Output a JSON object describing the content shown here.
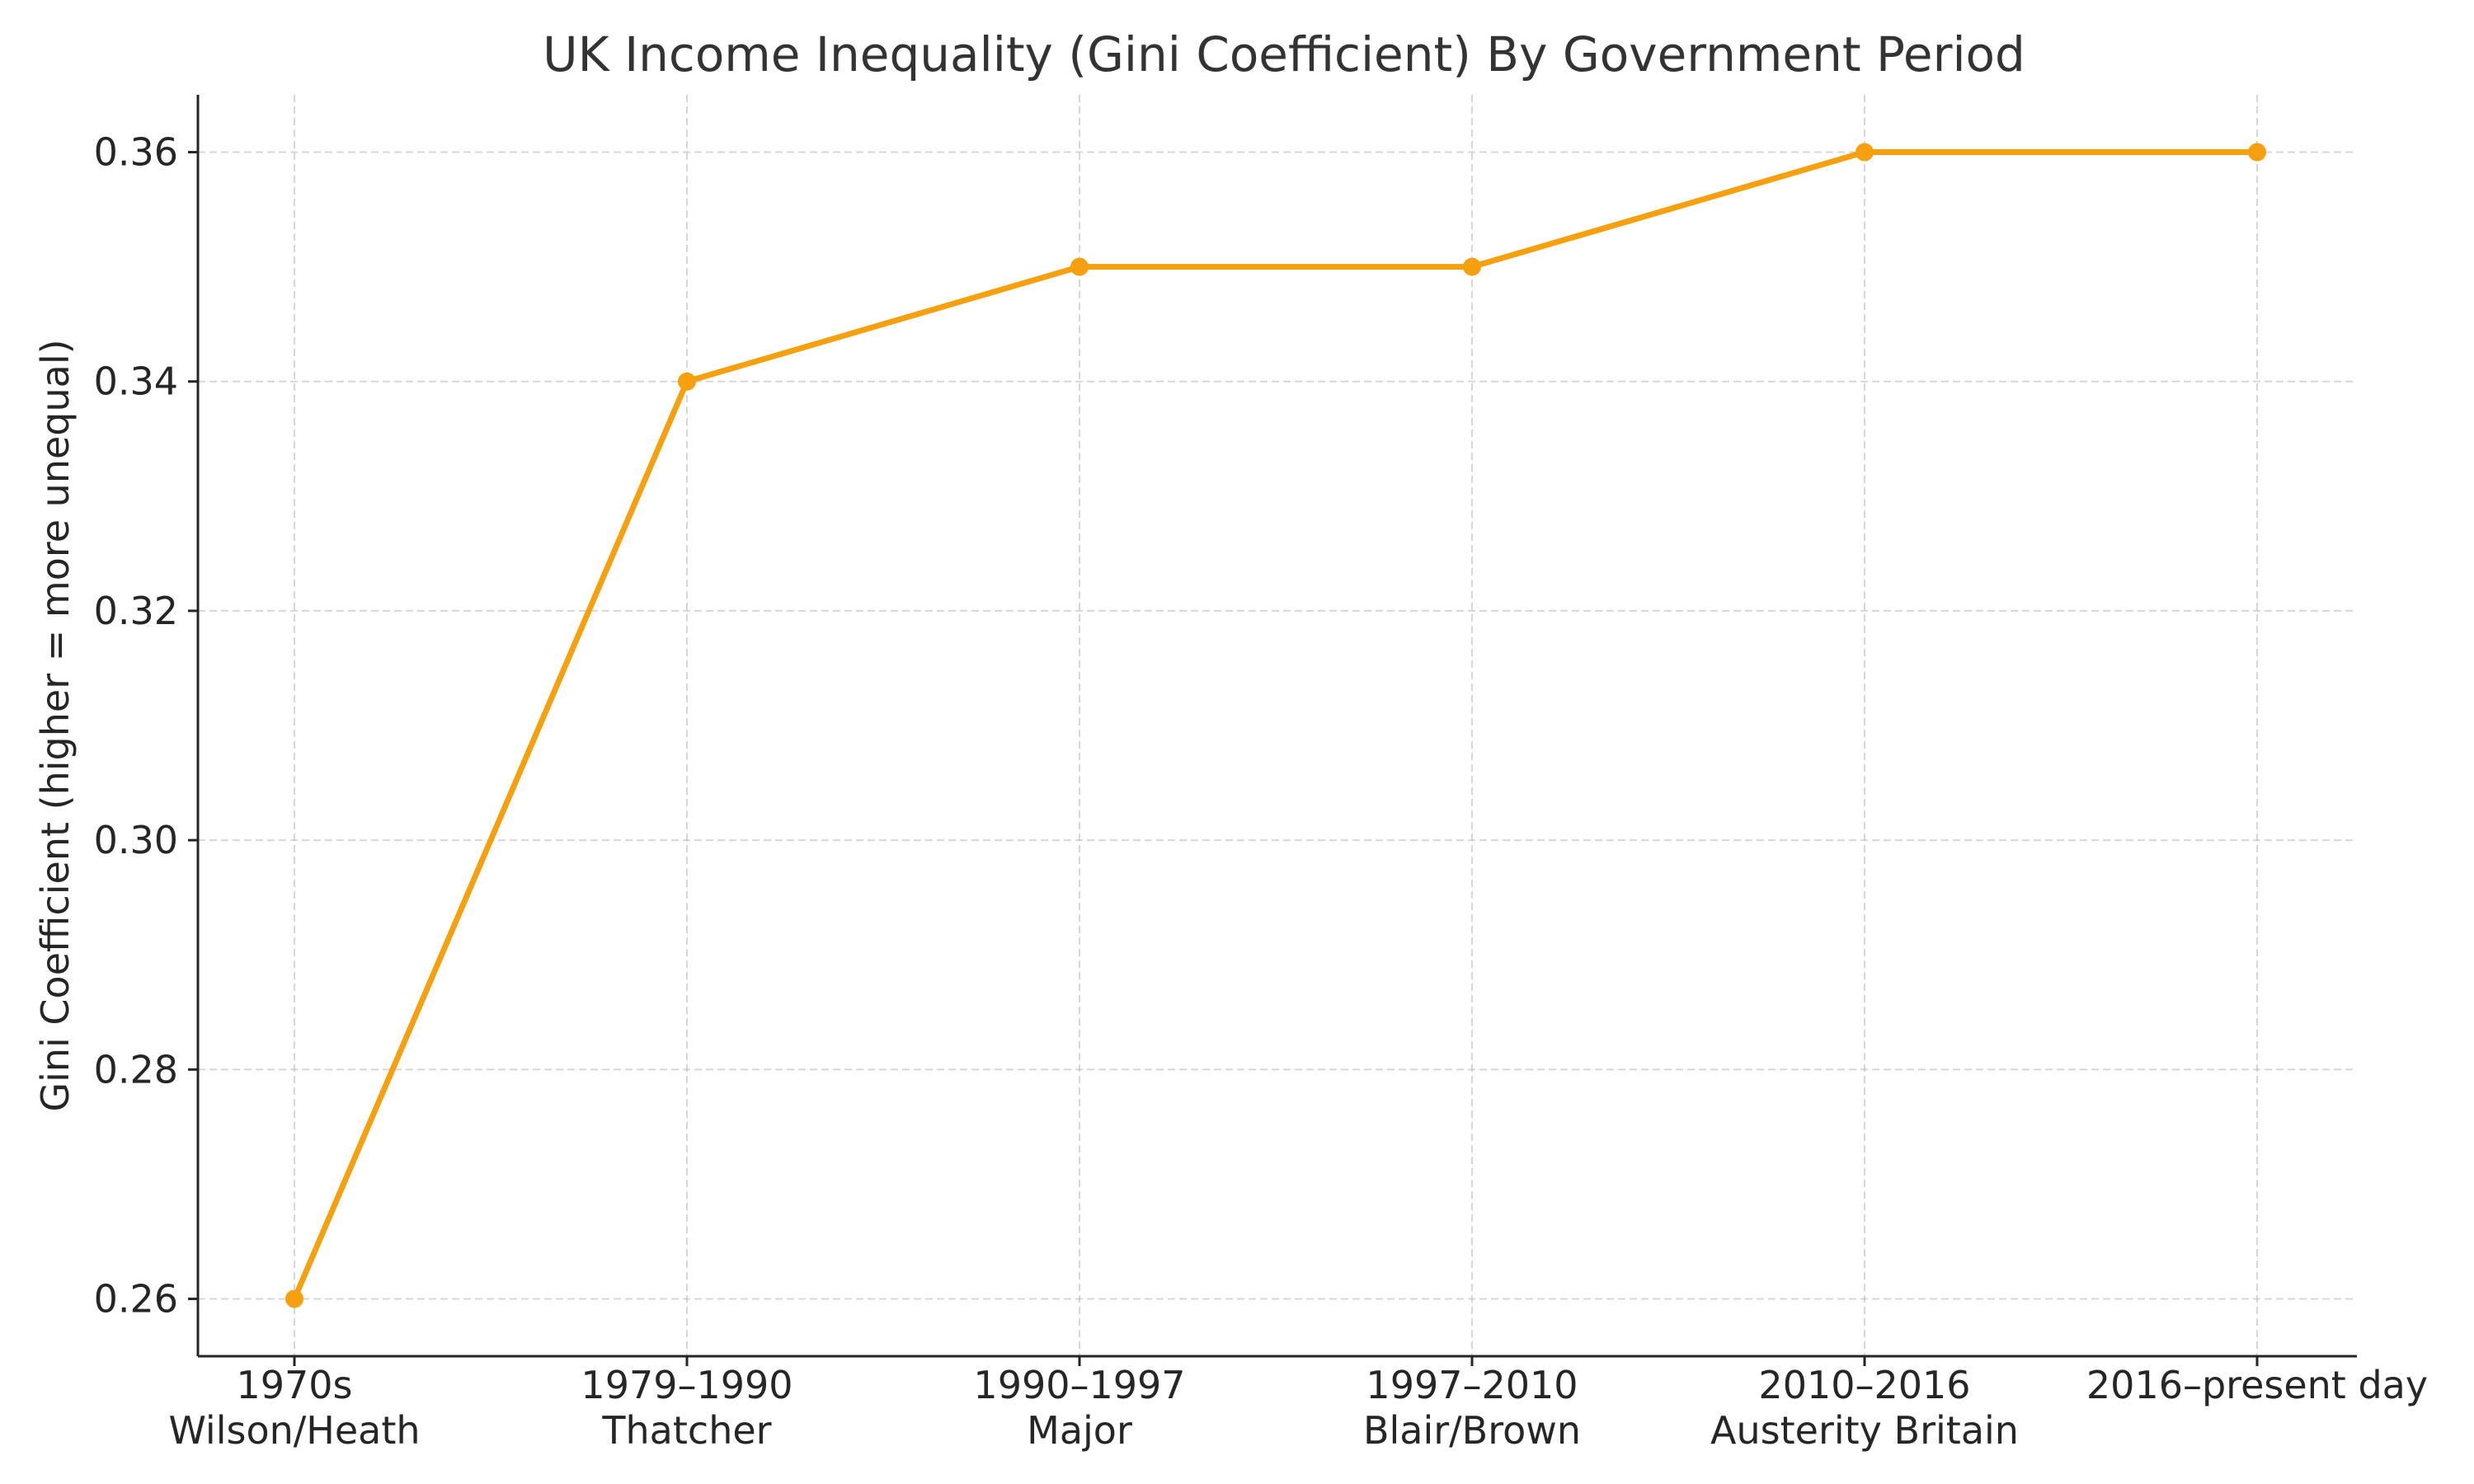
{
  "chart_data": {
    "type": "line",
    "title": "UK Income Inequality (Gini Coefficient) By Government Period",
    "xlabel": "",
    "ylabel": "Gini Coefficient (higher = more unequal)",
    "categories": [
      [
        "1970s",
        "Wilson/Heath"
      ],
      [
        "1979–1990",
        "Thatcher"
      ],
      [
        "1990–1997",
        "Major"
      ],
      [
        "1997–2010",
        "Blair/Brown"
      ],
      [
        "2010–2016",
        "Austerity Britain"
      ],
      [
        "2016–present day"
      ]
    ],
    "series": [
      {
        "values": [
          0.26,
          0.34,
          0.35,
          0.35,
          0.36,
          0.36
        ],
        "color": "#f5a10f",
        "marker": "circle"
      }
    ],
    "ylim": [
      0.255,
      0.365
    ],
    "yticks": [
      0.26,
      0.28,
      0.3,
      0.32,
      0.34,
      0.36
    ],
    "ytick_labels": [
      "0.26",
      "0.28",
      "0.30",
      "0.32",
      "0.34",
      "0.36"
    ],
    "grid": true,
    "legend": "none"
  }
}
